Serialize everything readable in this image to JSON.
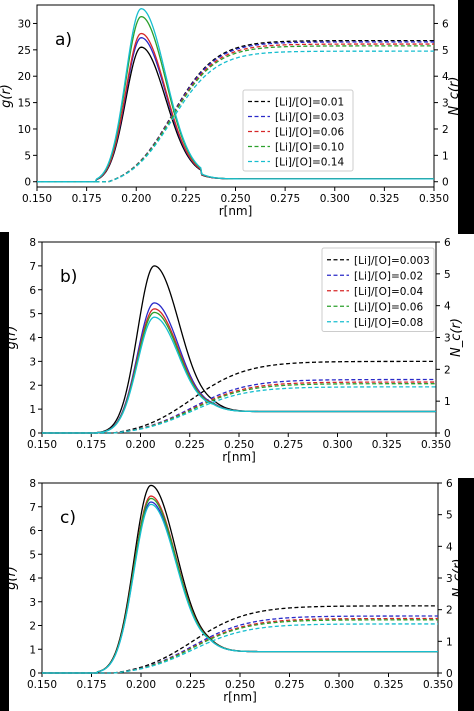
{
  "figure": {
    "bars_color": "#000000"
  },
  "chart_data": [
    {
      "type": "line",
      "panel_label": "a)",
      "xlabel": "r[nm]",
      "ylabel_left": "g(r)",
      "ylabel_right": "N_c(r)",
      "xlim": [
        0.15,
        0.35
      ],
      "ylim_left": [
        -1,
        33.5
      ],
      "ylim_right": [
        -0.2,
        6.7
      ],
      "xticks": [
        "0.150",
        "0.175",
        "0.200",
        "0.225",
        "0.250",
        "0.275",
        "0.300",
        "0.325",
        "0.350"
      ],
      "yticks_left": [
        0,
        5,
        10,
        15,
        20,
        25,
        30
      ],
      "yticks_right": [
        0,
        1,
        2,
        3,
        4,
        5,
        6
      ],
      "legend_position": "center-right",
      "series": [
        {
          "name": "[Li]/[O]=0.01",
          "color": "#000000",
          "g_peak": 25.5,
          "nc_plateau": 5.35
        },
        {
          "name": "[Li]/[O]=0.03",
          "color": "#2a2ac8",
          "g_peak": 27.3,
          "nc_plateau": 5.3
        },
        {
          "name": "[Li]/[O]=0.06",
          "color": "#d62728",
          "g_peak": 28.1,
          "nc_plateau": 5.22
        },
        {
          "name": "[Li]/[O]=0.10",
          "color": "#2ca02c",
          "g_peak": 31.3,
          "nc_plateau": 5.15
        },
        {
          "name": "[Li]/[O]=0.14",
          "color": "#17becf",
          "g_peak": 32.8,
          "nc_plateau": 4.95
        }
      ]
    },
    {
      "type": "line",
      "panel_label": "b)",
      "xlabel": "r[nm]",
      "ylabel_left": "g(r)",
      "ylabel_right": "N_c(r)",
      "xlim": [
        0.15,
        0.35
      ],
      "ylim_left": [
        0,
        8
      ],
      "ylim_right": [
        0,
        6
      ],
      "xticks": [
        "0.150",
        "0.175",
        "0.200",
        "0.225",
        "0.250",
        "0.275",
        "0.300",
        "0.325",
        "0.350"
      ],
      "yticks_left": [
        0,
        1,
        2,
        3,
        4,
        5,
        6,
        7,
        8
      ],
      "yticks_right": [
        0,
        1,
        2,
        3,
        4,
        5,
        6
      ],
      "legend_position": "top-right",
      "series": [
        {
          "name": "[Li]/[O]=0.003",
          "color": "#000000",
          "g_peak": 7.0,
          "nc_plateau": 2.25
        },
        {
          "name": "[Li]/[O]=0.02",
          "color": "#2a2ac8",
          "g_peak": 5.45,
          "nc_plateau": 1.68
        },
        {
          "name": "[Li]/[O]=0.04",
          "color": "#d62728",
          "g_peak": 5.2,
          "nc_plateau": 1.6
        },
        {
          "name": "[Li]/[O]=0.06",
          "color": "#2ca02c",
          "g_peak": 5.05,
          "nc_plateau": 1.55
        },
        {
          "name": "[Li]/[O]=0.08",
          "color": "#17becf",
          "g_peak": 4.85,
          "nc_plateau": 1.45
        }
      ]
    },
    {
      "type": "line",
      "panel_label": "c)",
      "xlabel": "r[nm]",
      "ylabel_left": "g(r)",
      "ylabel_right": "N_c(r)",
      "xlim": [
        0.15,
        0.35
      ],
      "ylim_left": [
        0,
        8
      ],
      "ylim_right": [
        0,
        6
      ],
      "xticks": [
        "0.150",
        "0.175",
        "0.200",
        "0.225",
        "0.250",
        "0.275",
        "0.300",
        "0.325",
        "0.350"
      ],
      "yticks_left": [
        0,
        1,
        2,
        3,
        4,
        5,
        6,
        7,
        8
      ],
      "yticks_right": [
        0,
        1,
        2,
        3,
        4,
        5,
        6
      ],
      "legend_position": "none",
      "series": [
        {
          "color": "#000000",
          "g_peak": 7.9,
          "nc_plateau": 2.12
        },
        {
          "color": "#2a2ac8",
          "g_peak": 7.2,
          "nc_plateau": 1.8
        },
        {
          "color": "#d62728",
          "g_peak": 7.45,
          "nc_plateau": 1.72
        },
        {
          "color": "#2ca02c",
          "g_peak": 7.35,
          "nc_plateau": 1.68
        },
        {
          "color": "#17becf",
          "g_peak": 7.1,
          "nc_plateau": 1.55
        }
      ]
    }
  ]
}
